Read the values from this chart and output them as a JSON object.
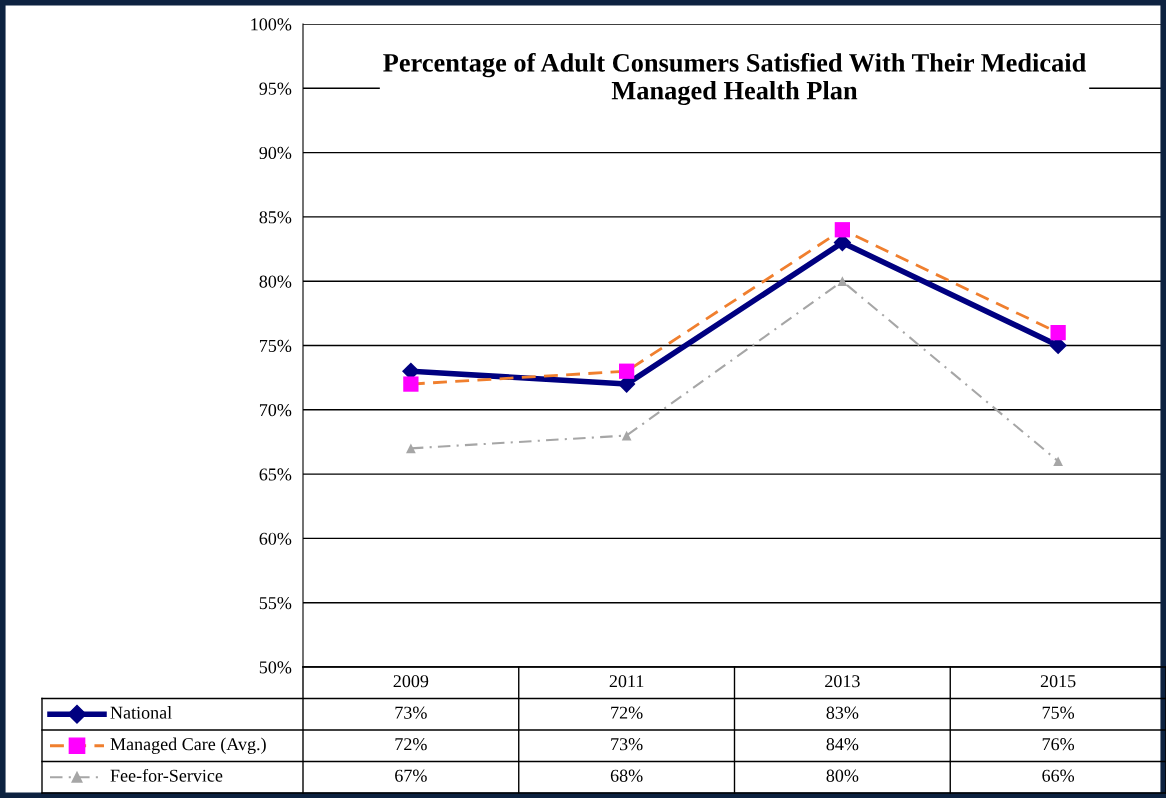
{
  "chart_data": {
    "type": "line",
    "title": "Percentage of Adult Consumers Satisfied With Their Medicaid\nManaged Health Plan",
    "categories": [
      "2009",
      "2011",
      "2013",
      "2015"
    ],
    "series": [
      {
        "name": "National",
        "color": "#000080",
        "values": [
          73,
          72,
          83,
          75
        ],
        "marker": "diamond",
        "line_style": "solid",
        "value_labels": [
          "73%",
          "72%",
          "83%",
          "75%"
        ]
      },
      {
        "name": "Managed Care (Avg.)",
        "color": "#f07f2e",
        "values": [
          72,
          73,
          84,
          76
        ],
        "marker": "square",
        "colors": [
          "#ff00ff",
          "#ff00ff",
          "#ff00ff",
          "#ff00ff"
        ],
        "line_style": "dashed",
        "value_labels": [
          "72%",
          "73%",
          "84%",
          "76%"
        ]
      },
      {
        "name": "Fee-for-Service",
        "color": "#a6a6a6",
        "values": [
          67,
          68,
          80,
          66
        ],
        "marker": "triangle",
        "line_style": "dashdot",
        "value_labels": [
          "67%",
          "68%",
          "80%",
          "66%"
        ]
      }
    ],
    "ylim": [
      50,
      100
    ],
    "yticks": [
      {
        "value": 50,
        "label": "50%"
      },
      {
        "value": 55,
        "label": "55%"
      },
      {
        "value": 60,
        "label": "60%"
      },
      {
        "value": 65,
        "label": "65%"
      },
      {
        "value": 70,
        "label": "70%"
      },
      {
        "value": 75,
        "label": "75%"
      },
      {
        "value": 80,
        "label": "80%"
      },
      {
        "value": 85,
        "label": "85%"
      },
      {
        "value": 90,
        "label": "90%"
      },
      {
        "value": 95,
        "label": "95%"
      },
      {
        "value": 100,
        "label": "100%"
      }
    ],
    "grid": "y",
    "legend": "bottom",
    "data_labels": true
  }
}
